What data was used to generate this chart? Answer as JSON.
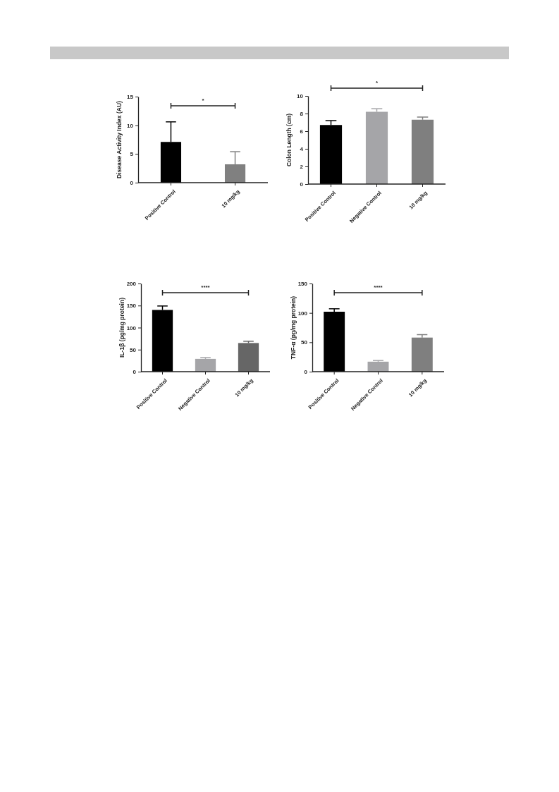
{
  "chart_data": [
    {
      "type": "bar",
      "ylabel": "Disease Activity Index (AU)",
      "categories": [
        "Positive Control",
        "10 mg/kg"
      ],
      "colors": [
        "#000000",
        "#808080"
      ],
      "values": [
        7.1,
        3.2
      ],
      "errors": [
        [
          7.1,
          10.6
        ],
        [
          3.2,
          5.4
        ]
      ],
      "ylim": [
        0,
        15
      ],
      "yticks": [
        0,
        5,
        10,
        15
      ],
      "annotations": [
        "*"
      ]
    },
    {
      "type": "bar",
      "ylabel": "Colon Length (cm)",
      "categories": [
        "Positive Control",
        "Negative Control",
        "10 mg/kg"
      ],
      "colors": [
        "#000000",
        "#a5a5a8",
        "#7f7f7f"
      ],
      "values": [
        6.7,
        8.2,
        7.3
      ],
      "errors": [
        [
          6.7,
          7.2
        ],
        [
          8.2,
          8.55
        ],
        [
          7.3,
          7.6
        ]
      ],
      "ylim": [
        0,
        10
      ],
      "yticks": [
        0,
        2,
        4,
        6,
        8,
        10
      ],
      "annotations": [
        "*"
      ]
    },
    {
      "type": "bar",
      "ylabel": "IL-1β (pg/mg protein)",
      "categories": [
        "Positive Control",
        "Negative Control",
        "10 mg/kg"
      ],
      "colors": [
        "#000000",
        "#a5a5a8",
        "#666666"
      ],
      "values": [
        140,
        29,
        65
      ],
      "errors": [
        [
          140,
          149
        ],
        [
          29,
          32
        ],
        [
          65,
          69
        ]
      ],
      "ylim": [
        0,
        200
      ],
      "yticks": [
        0,
        50,
        100,
        150,
        200
      ],
      "annotations": [
        "****"
      ]
    },
    {
      "type": "bar",
      "ylabel": "TNF-α (pg/mg protein)",
      "categories": [
        "Positive Control",
        "Negative Control",
        "10 mg/kg"
      ],
      "colors": [
        "#000000",
        "#a5a5a8",
        "#7f7f7f"
      ],
      "values": [
        102,
        17,
        58
      ],
      "errors": [
        [
          102,
          107
        ],
        [
          17,
          19
        ],
        [
          58,
          63
        ]
      ],
      "ylim": [
        0,
        150
      ],
      "yticks": [
        0,
        50,
        100,
        150
      ],
      "annotations": [
        "****"
      ]
    }
  ]
}
